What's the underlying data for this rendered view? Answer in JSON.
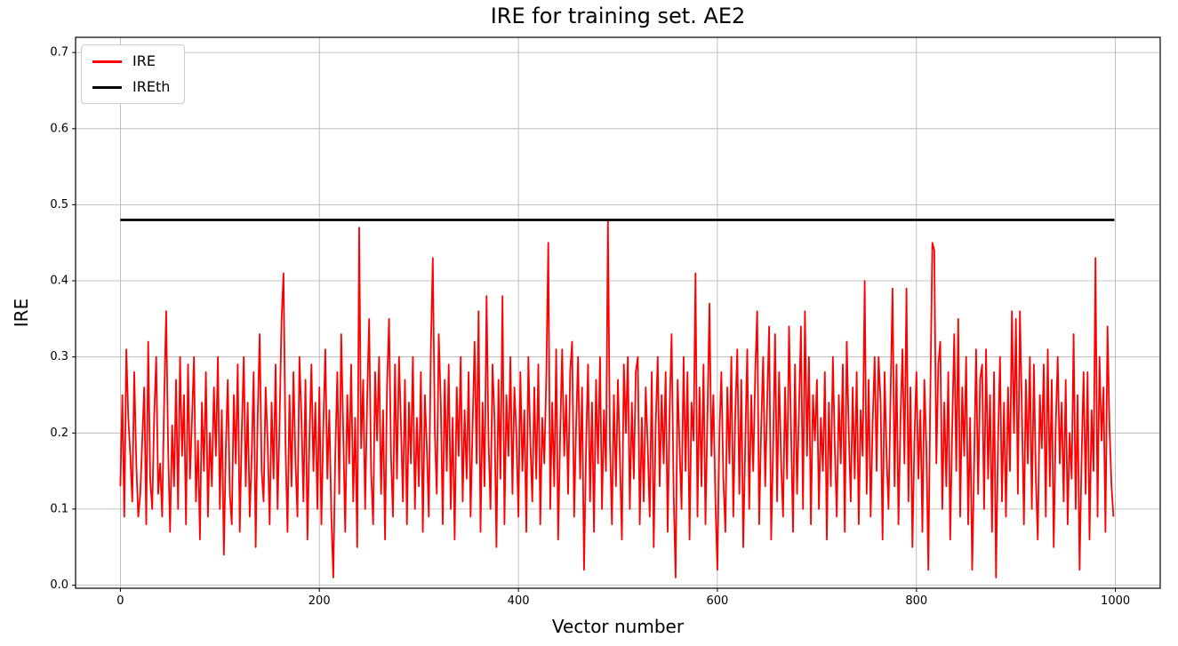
{
  "title": "IRE for training set. AE2",
  "colors": {
    "ire": "#ff0000",
    "ireth": "#000000",
    "grid": "#b0b0b0",
    "spine": "#000000",
    "background": "#ffffff"
  },
  "chart_data": {
    "type": "line",
    "title": "IRE for training set. AE2",
    "xlabel": "Vector number",
    "ylabel": "IRE",
    "xlim": [
      -45,
      1045
    ],
    "ylim": [
      -0.004,
      0.72
    ],
    "xticks": [
      0,
      200,
      400,
      600,
      800,
      1000
    ],
    "yticks": [
      0.0,
      0.1,
      0.2,
      0.3,
      0.4,
      0.5,
      0.6,
      0.7
    ],
    "grid": true,
    "legend_position": "upper-left",
    "series": [
      {
        "name": "IRE",
        "color": "#ff0000",
        "style": "noisy-line",
        "x_start": 0,
        "x_step": 2,
        "values_scale": 0.01,
        "values": [
          13,
          25,
          9,
          31,
          22,
          17,
          11,
          28,
          16,
          9,
          12,
          19,
          26,
          8,
          32,
          14,
          10,
          22,
          30,
          12,
          16,
          9,
          24,
          36,
          18,
          7,
          21,
          13,
          27,
          10,
          30,
          17,
          25,
          8,
          29,
          14,
          22,
          30,
          11,
          19,
          6,
          24,
          15,
          28,
          9,
          20,
          13,
          26,
          17,
          30,
          10,
          23,
          4,
          18,
          27,
          12,
          8,
          25,
          16,
          29,
          7,
          20,
          30,
          13,
          24,
          9,
          17,
          28,
          5,
          22,
          33,
          15,
          11,
          26,
          19,
          8,
          24,
          14,
          29,
          10,
          21,
          35,
          41,
          18,
          7,
          25,
          13,
          28,
          16,
          9,
          30,
          22,
          11,
          27,
          6,
          19,
          29,
          15,
          24,
          10,
          26,
          8,
          21,
          31,
          14,
          23,
          9,
          1,
          17,
          28,
          12,
          33,
          20,
          7,
          25,
          16,
          29,
          11,
          22,
          5,
          47,
          18,
          27,
          10,
          24,
          35,
          15,
          8,
          28,
          19,
          30,
          12,
          23,
          6,
          26,
          35,
          17,
          9,
          29,
          14,
          30,
          21,
          11,
          27,
          8,
          24,
          16,
          30,
          10,
          22,
          13,
          28,
          7,
          25,
          18,
          9,
          31,
          43,
          20,
          12,
          33,
          24,
          8,
          27,
          15,
          29,
          10,
          22,
          6,
          26,
          17,
          30,
          11,
          23,
          14,
          28,
          9,
          21,
          32,
          16,
          36,
          7,
          24,
          13,
          38,
          19,
          10,
          29,
          22,
          5,
          27,
          14,
          38,
          8,
          25,
          17,
          30,
          12,
          26,
          20,
          9,
          28,
          15,
          23,
          7,
          30,
          19,
          11,
          26,
          14,
          29,
          8,
          22,
          16,
          27,
          45,
          10,
          24,
          13,
          31,
          6,
          20,
          31,
          17,
          25,
          12,
          28,
          32,
          9,
          21,
          30,
          14,
          26,
          2,
          18,
          29,
          11,
          24,
          7,
          27,
          16,
          30,
          10,
          23,
          15,
          48,
          19,
          8,
          25,
          13,
          27,
          17,
          6,
          29,
          20,
          30,
          10,
          24,
          14,
          28,
          30,
          8,
          22,
          11,
          26,
          18,
          9,
          28,
          5,
          21,
          30,
          13,
          25,
          16,
          28,
          7,
          23,
          33,
          12,
          1,
          27,
          18,
          10,
          30,
          15,
          28,
          6,
          24,
          19,
          41,
          9,
          26,
          13,
          29,
          8,
          22,
          37,
          17,
          25,
          11,
          2,
          20,
          28,
          14,
          7,
          26,
          16,
          30,
          9,
          23,
          31,
          12,
          27,
          5,
          19,
          31,
          10,
          25,
          15,
          28,
          36,
          8,
          21,
          30,
          13,
          24,
          34,
          6,
          18,
          33,
          11,
          28,
          16,
          9,
          26,
          14,
          34,
          20,
          7,
          29,
          12,
          23,
          34,
          10,
          36,
          17,
          30,
          8,
          25,
          19,
          27,
          10,
          22,
          15,
          28,
          6,
          24,
          13,
          30,
          18,
          9,
          25,
          16,
          29,
          7,
          32,
          20,
          11,
          26,
          14,
          28,
          8,
          23,
          17,
          40,
          12,
          27,
          9,
          21,
          30,
          15,
          30,
          24,
          6,
          28,
          17,
          10,
          25,
          39,
          13,
          29,
          8,
          22,
          31,
          16,
          39,
          11,
          26,
          5,
          19,
          28,
          14,
          23,
          7,
          27,
          18,
          2,
          25,
          45,
          44,
          16,
          29,
          32,
          10,
          24,
          13,
          28,
          6,
          21,
          33,
          15,
          35,
          9,
          26,
          17,
          30,
          8,
          22,
          2,
          16,
          31,
          12,
          27,
          29,
          10,
          31,
          14,
          25,
          7,
          28,
          1,
          19,
          30,
          11,
          24,
          9,
          26,
          15,
          36,
          20,
          35,
          12,
          36,
          23,
          8,
          27,
          16,
          30,
          10,
          29,
          14,
          6,
          25,
          18,
          29,
          9,
          31,
          13,
          27,
          5,
          21,
          30,
          16,
          24,
          11,
          27,
          8,
          20,
          14,
          33,
          10,
          25,
          2,
          17,
          28,
          12,
          28,
          6,
          23,
          15,
          43,
          9,
          30,
          19,
          26,
          7,
          34,
          21,
          13,
          9
        ]
      },
      {
        "name": "IREth",
        "color": "#000000",
        "style": "hline",
        "y": 0.48,
        "x_range": [
          0,
          999
        ]
      }
    ]
  }
}
